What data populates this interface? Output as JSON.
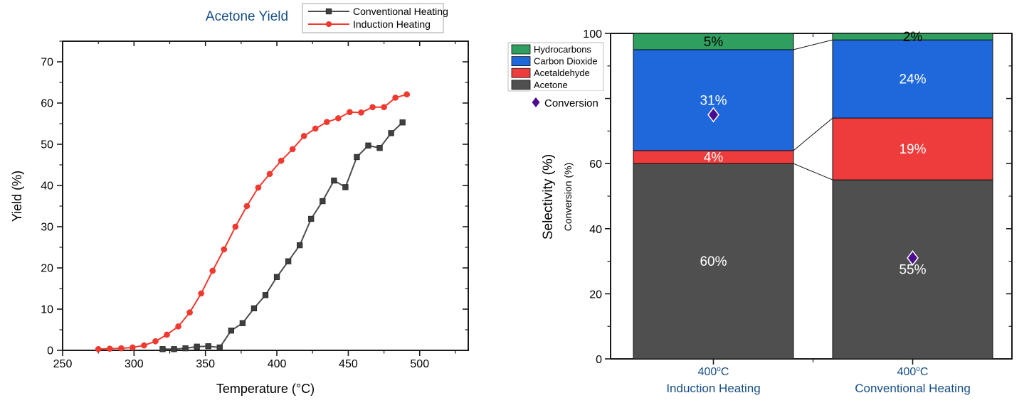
{
  "page": {
    "background": "#FFFFFF"
  },
  "chart_data": [
    {
      "id": "acetone-yield",
      "type": "line",
      "title": "Acetone Yield",
      "title_color": "#164E87",
      "xlabel": "Temperature (°C)",
      "ylabel": "Yield (%)",
      "xlim": [
        250,
        534
      ],
      "ylim": [
        0,
        75
      ],
      "x_ticks": [
        250,
        300,
        350,
        400,
        450,
        500
      ],
      "x_minor_ticks": [
        275,
        325,
        375,
        425,
        475,
        525
      ],
      "y_ticks": [
        0,
        10,
        20,
        30,
        40,
        50,
        60,
        70
      ],
      "y_minor_ticks": [
        5,
        15,
        25,
        35,
        45,
        55,
        65,
        75
      ],
      "grid": false,
      "legend_position": "top-right",
      "series": [
        {
          "name": "Conventional Heating",
          "marker": "square",
          "line_color": "#4D4D4D",
          "marker_color": "#3F3F3F",
          "x": [
            320,
            328,
            336,
            344,
            352,
            360,
            368,
            376,
            384,
            392,
            400,
            408,
            416,
            424,
            432,
            440,
            448,
            456,
            464,
            472,
            480,
            488
          ],
          "y": [
            0.3,
            0.3,
            0.5,
            0.9,
            1.0,
            0.7,
            4.8,
            6.6,
            10.2,
            13.4,
            17.8,
            21.6,
            25.5,
            31.9,
            36.2,
            41.2,
            39.6,
            46.9,
            49.7,
            49.1,
            52.7,
            55.3
          ]
        },
        {
          "name": "Induction Heating",
          "marker": "circle",
          "line_color": "#F0392F",
          "marker_color": "#F0392F",
          "x": [
            275,
            283,
            291,
            299,
            307,
            315,
            323,
            331,
            339,
            347,
            355,
            363,
            371,
            379,
            387,
            395,
            403,
            411,
            419,
            427,
            435,
            443,
            451,
            459,
            467,
            475,
            483,
            491
          ],
          "y": [
            0.3,
            0.4,
            0.5,
            0.7,
            1.2,
            2.2,
            3.8,
            5.8,
            9.2,
            13.8,
            19.3,
            24.5,
            30.0,
            35.0,
            39.5,
            42.8,
            46.0,
            48.8,
            52.0,
            53.8,
            55.4,
            56.3,
            57.8,
            57.7,
            59.0,
            59.0,
            61.3,
            62.1
          ]
        }
      ]
    },
    {
      "id": "selectivity-conversion",
      "type": "stacked-bar",
      "ylabel": "Selectivity (%)",
      "ylabel_secondary": "Conversion (%)",
      "ylim": [
        0,
        100
      ],
      "y_ticks": [
        0,
        20,
        40,
        60,
        80,
        100
      ],
      "y_minor_ticks": [
        10,
        30,
        50,
        70,
        90
      ],
      "category_label_color": "#164E87",
      "categories": [
        {
          "temp": "400°C",
          "method": "Induction Heating"
        },
        {
          "temp": "400°C",
          "method": "Conventional Heating"
        }
      ],
      "segments": [
        {
          "name": "Acetone",
          "color": "#4F4F4F",
          "values": [
            60,
            55
          ],
          "label_color": "#FFFFFF"
        },
        {
          "name": "Acetaldehyde",
          "color": "#EE3B3B",
          "values": [
            4,
            19
          ],
          "label_color": "#FFFFFF"
        },
        {
          "name": "Carbon Dioxide",
          "color": "#1E68DC",
          "values": [
            31,
            24
          ],
          "label_color": "#FFFFFF"
        },
        {
          "name": "Hydrocarbons",
          "color": "#2E9F5F",
          "values": [
            5,
            2
          ],
          "label_color": "#000000"
        }
      ],
      "value_suffix": "%",
      "conversion": {
        "name": "Conversion",
        "color": "#4B0C8F",
        "values": [
          75,
          31
        ]
      },
      "legend_order": [
        "Hydrocarbons",
        "Carbon Dioxide",
        "Acetaldehyde",
        "Acetone"
      ]
    }
  ]
}
